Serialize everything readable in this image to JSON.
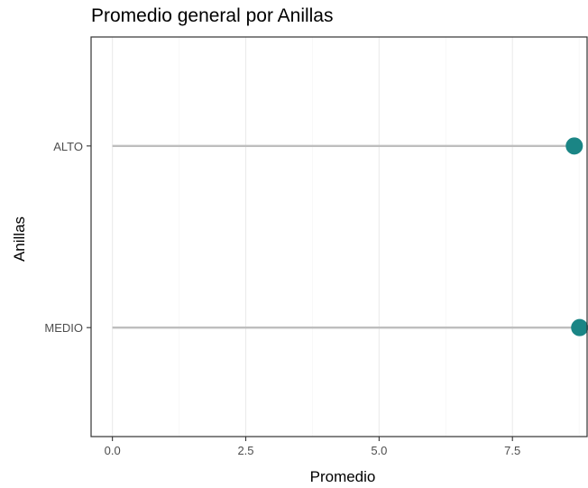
{
  "chart_data": {
    "type": "lollipop",
    "title": "Promedio general por Anillas",
    "xlabel": "Promedio",
    "ylabel": "Anillas",
    "categories": [
      "ALTO",
      "MEDIO"
    ],
    "values": [
      8.66,
      8.76
    ],
    "xlim": [
      -0.4,
      8.9
    ],
    "x_ticks": [
      0.0,
      2.5,
      5.0,
      7.5
    ],
    "x_tick_labels": [
      "0.0",
      "2.5",
      "5.0",
      "7.5"
    ],
    "grid": true,
    "legend": "none",
    "colors": {
      "point": "#1a8585",
      "segment": "#bebebe"
    }
  }
}
